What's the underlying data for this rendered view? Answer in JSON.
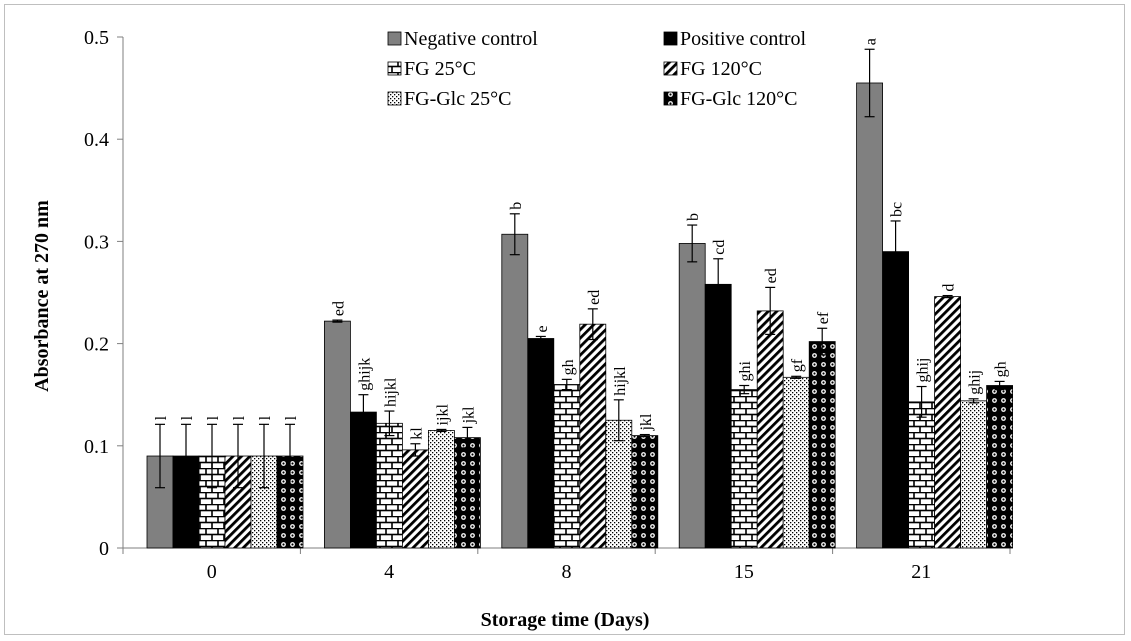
{
  "chart_data": {
    "type": "bar",
    "title": "",
    "xlabel": "Storage time (Days)",
    "ylabel": "Absorbance at 270 nm",
    "ylim": [
      0,
      0.5
    ],
    "yticks": [
      "0",
      "0.1",
      "0.2",
      "0.3",
      "0.4",
      "0.5"
    ],
    "categories": [
      "0",
      "4",
      "8",
      "15",
      "21"
    ],
    "legend_position": "top-center",
    "grid": false,
    "series": [
      {
        "name": "Negative control",
        "pattern": "solid-gray",
        "color": "#808080",
        "values": [
          0.09,
          0.222,
          0.307,
          0.298,
          0.455
        ],
        "errors": [
          0.031,
          0.001,
          0.02,
          0.018,
          0.033
        ],
        "letters": [
          "l",
          "ed",
          "b",
          "b",
          "a"
        ]
      },
      {
        "name": "Positive control",
        "pattern": "solid-black",
        "color": "#000000",
        "values": [
          0.09,
          0.133,
          0.205,
          0.258,
          0.29
        ],
        "errors": [
          0.031,
          0.017,
          0.002,
          0.025,
          0.03
        ],
        "letters": [
          "l",
          "ghijk",
          "e",
          "cd",
          "bc"
        ]
      },
      {
        "name": "FG 25°C",
        "pattern": "brick",
        "color": "#000000",
        "values": [
          0.09,
          0.122,
          0.16,
          0.155,
          0.143
        ],
        "errors": [
          0.031,
          0.012,
          0.005,
          0.004,
          0.015
        ],
        "letters": [
          "l",
          "hijkl",
          "gh",
          "ghi",
          "ghij"
        ]
      },
      {
        "name": "FG 120°C",
        "pattern": "diagonal",
        "color": "#000000",
        "values": [
          0.09,
          0.096,
          0.219,
          0.232,
          0.246
        ],
        "errors": [
          0.031,
          0.006,
          0.015,
          0.023,
          0.001
        ],
        "letters": [
          "l",
          "kl",
          "ed",
          "ed",
          "d"
        ]
      },
      {
        "name": "FG-Glc 25°C",
        "pattern": "dots",
        "color": "#000000",
        "values": [
          0.09,
          0.115,
          0.125,
          0.167,
          0.144
        ],
        "errors": [
          0.031,
          0.001,
          0.02,
          0.001,
          0.002
        ],
        "letters": [
          "l",
          "ijkl",
          "hijkl",
          "gf",
          "ghij"
        ]
      },
      {
        "name": "FG-Glc 120°C",
        "pattern": "circles",
        "color": "#000000",
        "values": [
          0.09,
          0.108,
          0.11,
          0.202,
          0.159
        ],
        "errors": [
          0.031,
          0.01,
          0.001,
          0.013,
          0.004
        ],
        "letters": [
          "l",
          "jkl",
          "jkl",
          "ef",
          "gh"
        ]
      }
    ]
  }
}
